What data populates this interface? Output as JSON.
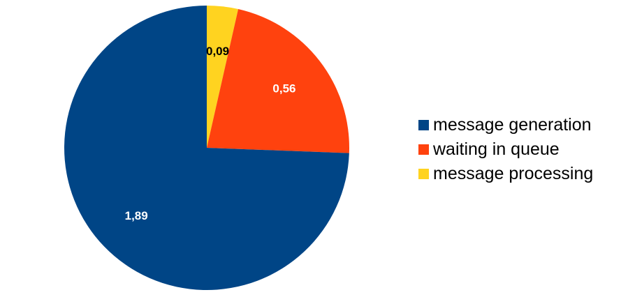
{
  "chart_data": {
    "type": "pie",
    "slices": [
      {
        "name": "message processing",
        "value": 0.09,
        "label": "0,09",
        "color": "#ffd320",
        "label_color": "#000000"
      },
      {
        "name": "waiting in queue",
        "value": 0.56,
        "label": "0,56",
        "color": "#ff420e",
        "label_color": "#ffffff"
      },
      {
        "name": "message generation",
        "value": 1.89,
        "label": "1,89",
        "color": "#004586",
        "label_color": "#ffffff"
      }
    ],
    "legend_position": "right"
  },
  "legend": {
    "items": [
      {
        "label": "message generation",
        "color": "#004586"
      },
      {
        "label": "waiting in queue",
        "color": "#ff420e"
      },
      {
        "label": "message processing",
        "color": "#ffd320"
      }
    ]
  }
}
